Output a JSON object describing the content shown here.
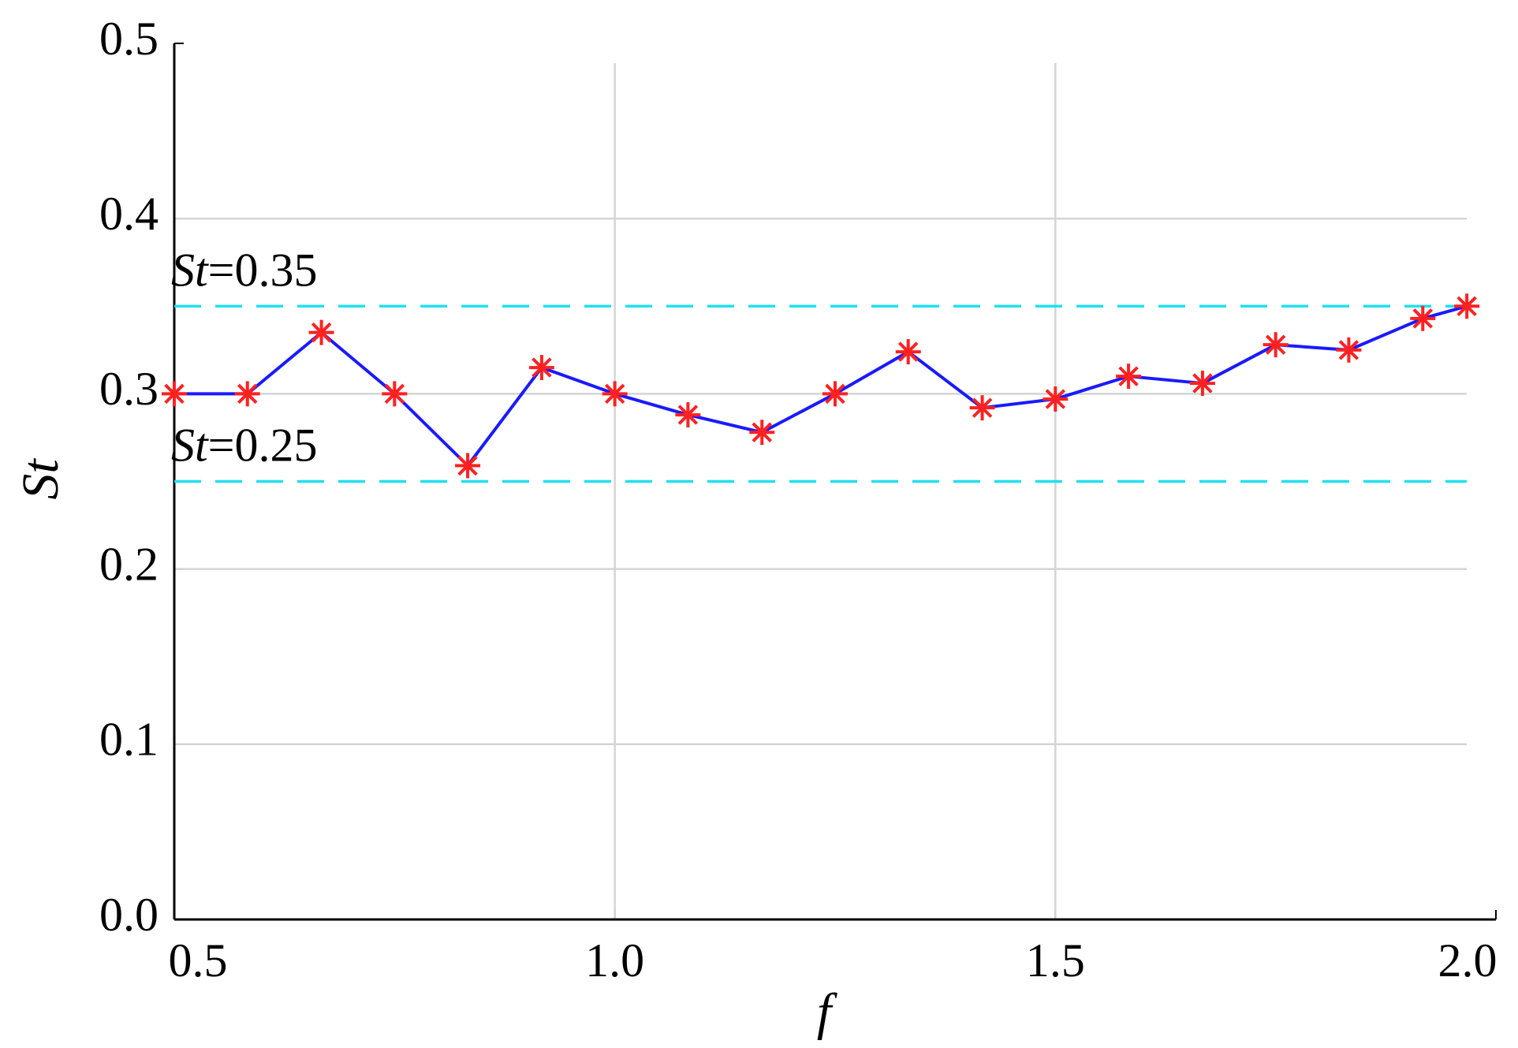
{
  "chart_data": {
    "type": "line",
    "x_label": "f",
    "y_label": "St",
    "x": [
      0.5,
      0.583,
      0.667,
      0.75,
      0.833,
      0.917,
      1.0,
      1.083,
      1.167,
      1.25,
      1.333,
      1.417,
      1.5,
      1.583,
      1.667,
      1.75,
      1.833,
      1.917,
      1.967
    ],
    "series": [
      {
        "color": "#1a1aff",
        "marker_color": "#ff2020",
        "values": [
          0.3,
          0.3,
          0.335,
          0.3,
          0.259,
          0.315,
          0.3,
          0.288,
          0.278,
          0.3,
          0.324,
          0.292,
          0.297,
          0.31,
          0.306,
          0.328,
          0.325,
          0.343,
          0.35
        ]
      }
    ],
    "reference_lines": [
      {
        "value": 0.35,
        "label_symbol": "St",
        "label": "=0.35",
        "color": "#22e0f0"
      },
      {
        "value": 0.25,
        "label_symbol": "St",
        "label": "=0.25",
        "color": "#22e0f0"
      }
    ],
    "xlim": [
      0.5,
      2.0
    ],
    "ylim": [
      0,
      0.5
    ],
    "xticks": [
      0.5,
      {
        "value": 1,
        "label": "1.0"
      },
      1.5,
      {
        "value": 2,
        "label": "2.0"
      }
    ],
    "yticks": [
      {
        "value": 0,
        "label": "0.0"
      },
      0.1,
      0.2,
      0.3,
      0.4,
      0.5
    ],
    "grid": true
  }
}
